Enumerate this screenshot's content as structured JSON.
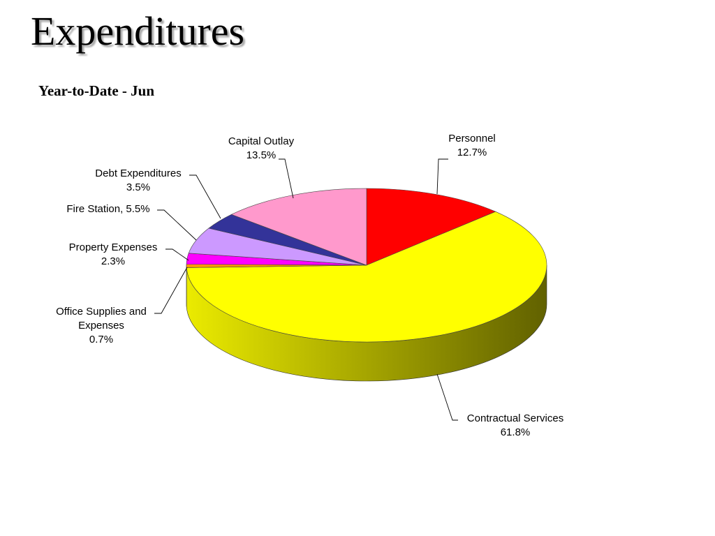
{
  "slide": {
    "title": "Expenditures",
    "subtitle": "Year-to-Date - Jun"
  },
  "chart_data": {
    "type": "pie",
    "style": "3d-exploded-none",
    "title": "Year-to-Date - Jun",
    "slices": [
      {
        "name": "Personnel",
        "value": 12.7,
        "label": [
          "Personnel",
          "12.7%"
        ],
        "color": "#ff0000"
      },
      {
        "name": "Contractual Services",
        "value": 61.8,
        "label": [
          "Contractual Services",
          "61.8%"
        ],
        "color": "#ffff00"
      },
      {
        "name": "Office Supplies and Expenses",
        "value": 0.7,
        "label": [
          "Office Supplies and",
          "Expenses",
          "0.7%"
        ],
        "color": "#ff9900"
      },
      {
        "name": "Property Expenses",
        "value": 2.3,
        "label": [
          "Property Expenses",
          "2.3%"
        ],
        "color": "#ff00ff"
      },
      {
        "name": "Fire Station",
        "value": 5.5,
        "label": [
          "Fire Station, 5.5%"
        ],
        "color": "#cc99ff"
      },
      {
        "name": "Debt Expenditures",
        "value": 3.5,
        "label": [
          "Debt Expenditures",
          "3.5%"
        ],
        "color": "#333399"
      },
      {
        "name": "Capital Outlay",
        "value": 13.5,
        "label": [
          "Capital Outlay",
          "13.5%"
        ],
        "color": "#ff99cc"
      }
    ],
    "label_placement": "outside-with-leader-lines",
    "legend": "none"
  }
}
